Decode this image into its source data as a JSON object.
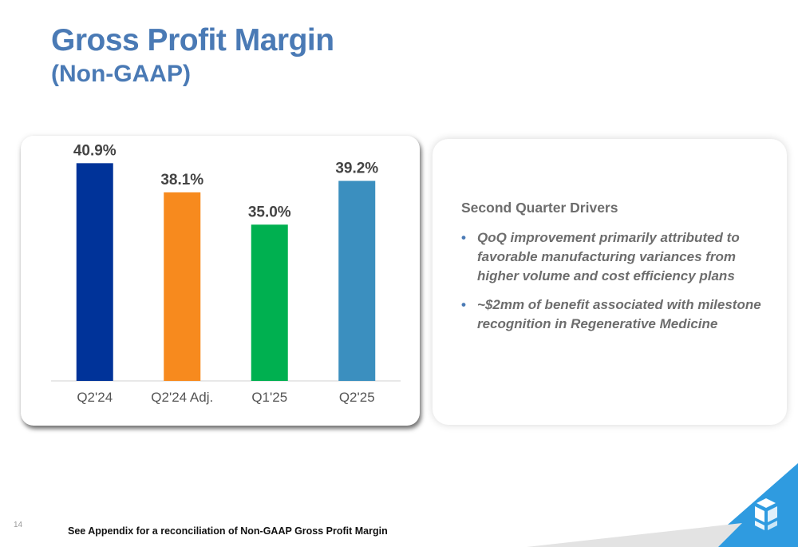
{
  "title": "Gross Profit Margin",
  "subtitle": "(Non-GAAP)",
  "chart_data": {
    "type": "bar",
    "categories": [
      "Q2'24",
      "Q2'24 Adj.",
      "Q1'25",
      "Q2'25"
    ],
    "values": [
      40.9,
      38.1,
      35.0,
      39.2
    ],
    "value_labels": [
      "40.9%",
      "38.1%",
      "35.0%",
      "39.2%"
    ],
    "colors": [
      "#003399",
      "#f78a1e",
      "#00b050",
      "#3b8fbf"
    ],
    "ylim": [
      20,
      42
    ],
    "grid": false,
    "legend": "none"
  },
  "drivers": {
    "heading": "Second Quarter Drivers",
    "bullet_glyph": "•",
    "items": [
      "QoQ improvement primarily attributed to favorable manufacturing variances from higher volume and cost efficiency plans",
      "~$2mm of benefit associated with milestone recognition in Regenerative Medicine"
    ]
  },
  "footer": {
    "page_number": "14",
    "footnote": "See Appendix for a reconciliation of Non-GAAP Gross Profit Margin"
  },
  "icons": {
    "logo": "company-logo-icon",
    "corner": "corner-stripe-decoration"
  },
  "colors": {
    "title": "#4a7ab5",
    "accent": "#4a7ab5",
    "corner_blue": "#2f9be0",
    "corner_gray": "#d9d9d9"
  }
}
